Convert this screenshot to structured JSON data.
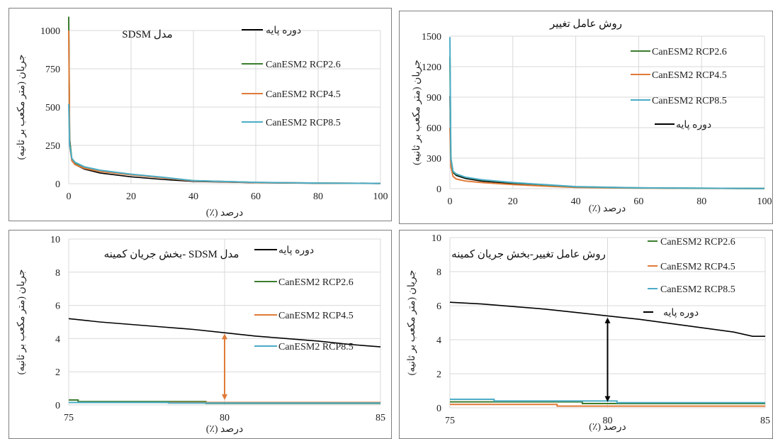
{
  "colors": {
    "baseline": "#000000",
    "rcp26": "#3b7d2e",
    "rcp45": "#e07b39",
    "rcp85": "#4bacc6",
    "grid": "#d9d9d9",
    "arrow_orange": "#e07b39",
    "arrow_black": "#000000"
  },
  "chart_data": [
    {
      "type": "line",
      "title_parts": [
        "مدل",
        "SDSM"
      ],
      "xlabel": "درصد (٪)",
      "ylabel": "جریان (متر مکعب بر ثانیه)",
      "xlim": [
        0,
        100
      ],
      "ylim": [
        0,
        1000
      ],
      "xticks": [
        0,
        20,
        40,
        60,
        80,
        100
      ],
      "yticks": [
        0,
        250,
        500,
        750,
        1000
      ],
      "legend_order": [
        "baseline",
        "rcp26",
        "rcp45",
        "rcp85"
      ],
      "series": [
        {
          "key": "baseline",
          "name": "دوره پایه",
          "x": [
            0,
            0.3,
            1,
            2,
            5,
            10,
            20,
            30,
            40,
            60,
            80,
            100
          ],
          "y": [
            1090,
            300,
            150,
            125,
            95,
            70,
            45,
            28,
            15,
            6,
            3,
            1
          ]
        },
        {
          "key": "rcp26",
          "name": "CanESM2 RCP2.6",
          "x": [
            0,
            0.3,
            1,
            2,
            5,
            10,
            20,
            30,
            40,
            60,
            80,
            100
          ],
          "y": [
            1090,
            280,
            160,
            135,
            105,
            85,
            60,
            40,
            20,
            8,
            4,
            2
          ]
        },
        {
          "key": "rcp45",
          "name": "CanESM2 RCP4.5",
          "x": [
            0,
            0.3,
            1,
            2,
            5,
            10,
            20,
            30,
            40,
            60,
            80,
            100
          ],
          "y": [
            1000,
            250,
            150,
            125,
            100,
            80,
            58,
            38,
            18,
            7,
            4,
            2
          ]
        },
        {
          "key": "rcp85",
          "name": "CanESM2 RCP8.5",
          "x": [
            0,
            0.3,
            1,
            2,
            5,
            10,
            20,
            30,
            40,
            60,
            80,
            100
          ],
          "y": [
            520,
            250,
            165,
            140,
            110,
            88,
            62,
            42,
            20,
            9,
            4,
            2
          ]
        }
      ]
    },
    {
      "type": "line",
      "title": "روش عامل تغییر",
      "xlabel": "درصد (٪)",
      "ylabel": "جریان (متر مکعب بر ثانیه)",
      "xlim": [
        0,
        100
      ],
      "ylim": [
        0,
        1500
      ],
      "xticks": [
        0,
        20,
        40,
        60,
        80,
        100
      ],
      "yticks": [
        0,
        300,
        600,
        900,
        1200,
        1500
      ],
      "legend_order": [
        "rcp26",
        "rcp45",
        "rcp85",
        "baseline"
      ],
      "series": [
        {
          "key": "baseline",
          "name": "دوره پایه",
          "x": [
            0,
            0.3,
            1,
            2,
            5,
            10,
            20,
            30,
            40,
            60,
            80,
            100
          ],
          "y": [
            910,
            300,
            160,
            130,
            100,
            75,
            50,
            30,
            15,
            6,
            3,
            1
          ]
        },
        {
          "key": "rcp26",
          "name": "CanESM2 RCP2.6",
          "x": [
            0,
            0.3,
            1,
            2,
            5,
            10,
            20,
            30,
            40,
            60,
            80,
            100
          ],
          "y": [
            1300,
            300,
            165,
            140,
            110,
            85,
            58,
            38,
            18,
            8,
            4,
            2
          ]
        },
        {
          "key": "rcp45",
          "name": "CanESM2 RCP4.5",
          "x": [
            0,
            0.3,
            1,
            2,
            5,
            10,
            20,
            30,
            40,
            60,
            80,
            100
          ],
          "y": [
            600,
            220,
            120,
            95,
            75,
            60,
            40,
            25,
            12,
            5,
            3,
            1
          ]
        },
        {
          "key": "rcp85",
          "name": "CanESM2 RCP8.5",
          "x": [
            0,
            0.3,
            1,
            2,
            5,
            10,
            20,
            30,
            40,
            60,
            80,
            100
          ],
          "y": [
            1490,
            300,
            170,
            145,
            112,
            88,
            60,
            40,
            20,
            8,
            4,
            2
          ]
        }
      ]
    },
    {
      "type": "line",
      "title_parts": [
        "مدل",
        "SDSM",
        "-بخش جریان کمینه"
      ],
      "xlabel": "درصد (٪)",
      "ylabel": "جریان (متر مکعب بر ثانیه)",
      "xlim": [
        75,
        85
      ],
      "ylim": [
        0,
        10
      ],
      "xticks": [
        75,
        80,
        85
      ],
      "yticks": [
        0,
        2,
        4,
        6,
        8,
        10
      ],
      "legend_order": [
        "baseline",
        "rcp26",
        "rcp45",
        "rcp85"
      ],
      "arrow": {
        "x": 80,
        "y_from": 4.3,
        "y_to": 0.3,
        "color_key": "arrow_orange"
      },
      "series": [
        {
          "key": "baseline",
          "name": "دوره پایه",
          "x": [
            75,
            76,
            77,
            78,
            79,
            80,
            81,
            82,
            83,
            84,
            85
          ],
          "y": [
            5.2,
            5.0,
            4.85,
            4.7,
            4.55,
            4.35,
            4.15,
            4.0,
            3.85,
            3.65,
            3.5
          ]
        },
        {
          "key": "rcp26",
          "name": "CanESM2 RCP2.6",
          "x": [
            75,
            75.3,
            75.3,
            79.4,
            79.4,
            85
          ],
          "y": [
            0.3,
            0.3,
            0.2,
            0.2,
            0.1,
            0.1
          ]
        },
        {
          "key": "rcp45",
          "name": "CanESM2 RCP4.5",
          "x": [
            75,
            85
          ],
          "y": [
            0.15,
            0.15
          ]
        },
        {
          "key": "rcp85",
          "name": "CanESM2 RCP8.5",
          "x": [
            75,
            78.2,
            78.2,
            85
          ],
          "y": [
            0.15,
            0.15,
            0.12,
            0.12
          ]
        }
      ]
    },
    {
      "type": "line",
      "title": "روش عامل تغییر-بخش جریان کمینه",
      "xlabel": "درصد (٪)",
      "ylabel": "جریان (متر مکعب بر ثانیه)",
      "xlim": [
        75,
        85
      ],
      "ylim": [
        0,
        10
      ],
      "xticks": [
        75,
        80,
        85
      ],
      "yticks": [
        0,
        2,
        4,
        6,
        8,
        10
      ],
      "legend_order": [
        "rcp26",
        "rcp45",
        "rcp85",
        "baseline"
      ],
      "arrow": {
        "x": 80,
        "y_from": 5.3,
        "y_to": 0.35,
        "color_key": "arrow_black"
      },
      "series": [
        {
          "key": "baseline",
          "name": "دوره پایه",
          "x": [
            75,
            76,
            77,
            78,
            79,
            80,
            81,
            82,
            83,
            84,
            84.6,
            85
          ],
          "y": [
            6.2,
            6.1,
            5.95,
            5.8,
            5.6,
            5.4,
            5.2,
            4.95,
            4.7,
            4.45,
            4.2,
            4.2
          ]
        },
        {
          "key": "rcp26",
          "name": "CanESM2 RCP2.6",
          "x": [
            75,
            79.2,
            79.2,
            85
          ],
          "y": [
            0.35,
            0.35,
            0.25,
            0.25
          ]
        },
        {
          "key": "rcp45",
          "name": "CanESM2 RCP4.5",
          "x": [
            75,
            78.4,
            78.4,
            85
          ],
          "y": [
            0.2,
            0.2,
            0.1,
            0.1
          ]
        },
        {
          "key": "rcp85",
          "name": "CanESM2 RCP8.5",
          "x": [
            75,
            76.4,
            76.4,
            80.3,
            80.3,
            85
          ],
          "y": [
            0.5,
            0.5,
            0.4,
            0.4,
            0.3,
            0.3
          ]
        }
      ]
    }
  ]
}
